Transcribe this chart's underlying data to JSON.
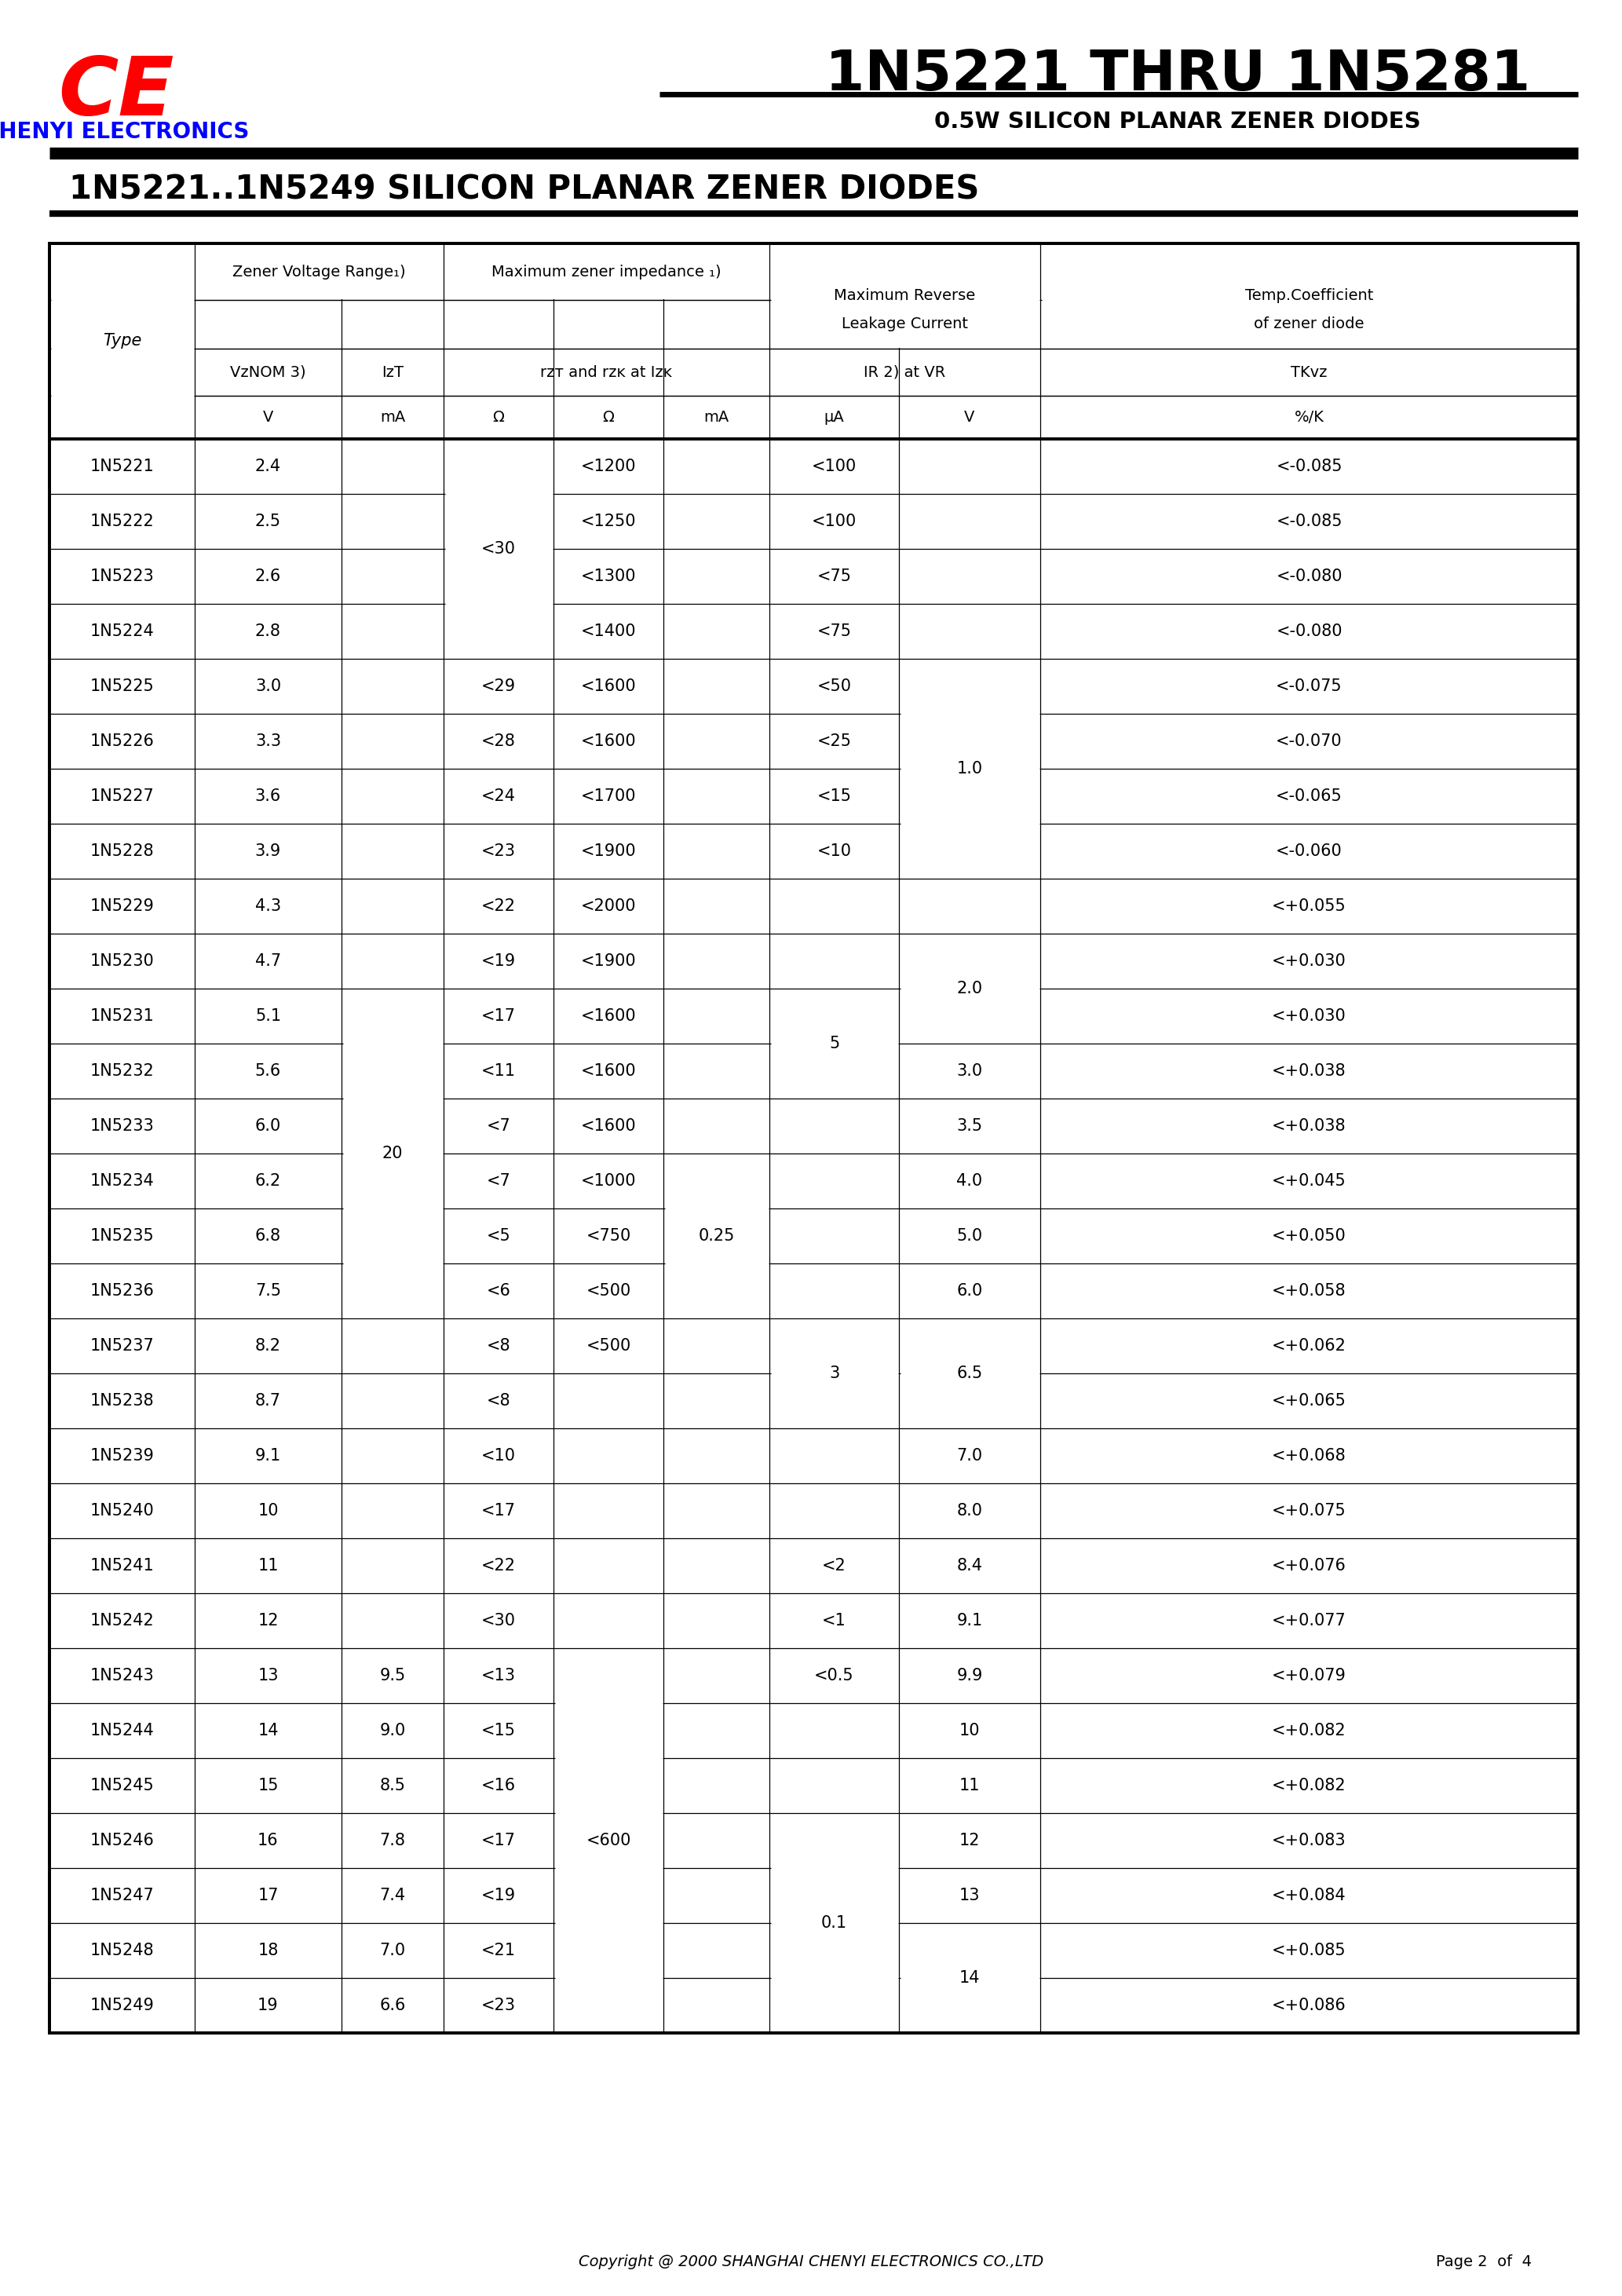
{
  "page_title": "1N5221 THRU 1N5281",
  "page_subtitle": "0.5W SILICON PLANAR ZENER DIODES",
  "section_title": "1N5221..1N5249 SILICON PLANAR ZENER DIODES",
  "logo_text": "CE",
  "company_name": "CHENYI ELECTRONICS",
  "copyright": "Copyright @ 2000 SHANGHAI CHENYI ELECTRONICS CO.,LTD",
  "page_num": "Page 2  of  4",
  "rows": [
    {
      "type": "1N5221",
      "vz": "2.4",
      "izt": "",
      "rzt": "",
      "rzk": "<1200",
      "izk": "",
      "ir": "<100",
      "vr": "",
      "tkvz": "<-0.085"
    },
    {
      "type": "1N5222",
      "vz": "2.5",
      "izt": "",
      "rzt": "",
      "rzk": "<1250",
      "izk": "",
      "ir": "<100",
      "vr": "",
      "tkvz": "<-0.085"
    },
    {
      "type": "1N5223",
      "vz": "2.6",
      "izt": "",
      "rzt": "<30",
      "rzk": "<1300",
      "izk": "",
      "ir": "<75",
      "vr": "",
      "tkvz": "<-0.080"
    },
    {
      "type": "1N5224",
      "vz": "2.8",
      "izt": "",
      "rzt": "",
      "rzk": "<1400",
      "izk": "",
      "ir": "<75",
      "vr": "",
      "tkvz": "<-0.080"
    },
    {
      "type": "1N5225",
      "vz": "3.0",
      "izt": "",
      "rzt": "<29",
      "rzk": "<1600",
      "izk": "",
      "ir": "<50",
      "vr": "1.0",
      "tkvz": "<-0.075"
    },
    {
      "type": "1N5226",
      "vz": "3.3",
      "izt": "",
      "rzt": "<28",
      "rzk": "<1600",
      "izk": "",
      "ir": "<25",
      "vr": "",
      "tkvz": "<-0.070"
    },
    {
      "type": "1N5227",
      "vz": "3.6",
      "izt": "",
      "rzt": "<24",
      "rzk": "<1700",
      "izk": "",
      "ir": "<15",
      "vr": "",
      "tkvz": "<-0.065"
    },
    {
      "type": "1N5228",
      "vz": "3.9",
      "izt": "",
      "rzt": "<23",
      "rzk": "<1900",
      "izk": "",
      "ir": "<10",
      "vr": "",
      "tkvz": "<-0.060"
    },
    {
      "type": "1N5229",
      "vz": "4.3",
      "izt": "",
      "rzt": "<22",
      "rzk": "<2000",
      "izk": "",
      "ir": "",
      "vr": "",
      "tkvz": "<+0.055"
    },
    {
      "type": "1N5230",
      "vz": "4.7",
      "izt": "",
      "rzt": "<19",
      "rzk": "<1900",
      "izk": "",
      "ir": "",
      "vr": "2.0",
      "tkvz": "<+0.030"
    },
    {
      "type": "1N5231",
      "vz": "5.1",
      "izt": "",
      "rzt": "<17",
      "rzk": "<1600",
      "izk": "",
      "ir": "",
      "vr": "2.0",
      "tkvz": "<+0.030"
    },
    {
      "type": "1N5232",
      "vz": "5.6",
      "izt": "",
      "rzt": "<11",
      "rzk": "<1600",
      "izk": "",
      "ir": "",
      "vr": "3.0",
      "tkvz": "<+0.038"
    },
    {
      "type": "1N5233",
      "vz": "6.0",
      "izt": "",
      "rzt": "<7",
      "rzk": "<1600",
      "izk": "",
      "ir": "",
      "vr": "3.5",
      "tkvz": "<+0.038"
    },
    {
      "type": "1N5234",
      "vz": "6.2",
      "izt": "",
      "rzt": "<7",
      "rzk": "<1000",
      "izk": "0.25",
      "ir": "",
      "vr": "4.0",
      "tkvz": "<+0.045"
    },
    {
      "type": "1N5235",
      "vz": "6.8",
      "izt": "",
      "rzt": "<5",
      "rzk": "<750",
      "izk": "",
      "ir": "",
      "vr": "5.0",
      "tkvz": "<+0.050"
    },
    {
      "type": "1N5236",
      "vz": "7.5",
      "izt": "",
      "rzt": "<6",
      "rzk": "<500",
      "izk": "",
      "ir": "",
      "vr": "6.0",
      "tkvz": "<+0.058"
    },
    {
      "type": "1N5237",
      "vz": "8.2",
      "izt": "",
      "rzt": "<8",
      "rzk": "<500",
      "izk": "",
      "ir": "3",
      "vr": "6.5",
      "tkvz": "<+0.062"
    },
    {
      "type": "1N5238",
      "vz": "8.7",
      "izt": "",
      "rzt": "<8",
      "rzk": "",
      "izk": "",
      "ir": "",
      "vr": "6.5",
      "tkvz": "<+0.065"
    },
    {
      "type": "1N5239",
      "vz": "9.1",
      "izt": "",
      "rzt": "<10",
      "rzk": "",
      "izk": "",
      "ir": "",
      "vr": "7.0",
      "tkvz": "<+0.068"
    },
    {
      "type": "1N5240",
      "vz": "10",
      "izt": "",
      "rzt": "<17",
      "rzk": "",
      "izk": "",
      "ir": "",
      "vr": "8.0",
      "tkvz": "<+0.075"
    },
    {
      "type": "1N5241",
      "vz": "11",
      "izt": "",
      "rzt": "<22",
      "rzk": "",
      "izk": "",
      "ir": "<2",
      "vr": "8.4",
      "tkvz": "<+0.076"
    },
    {
      "type": "1N5242",
      "vz": "12",
      "izt": "",
      "rzt": "<30",
      "rzk": "",
      "izk": "",
      "ir": "<1",
      "vr": "9.1",
      "tkvz": "<+0.077"
    },
    {
      "type": "1N5243",
      "vz": "13",
      "izt": "9.5",
      "rzt": "<13",
      "rzk": "<600",
      "izk": "",
      "ir": "<0.5",
      "vr": "9.9",
      "tkvz": "<+0.079"
    },
    {
      "type": "1N5244",
      "vz": "14",
      "izt": "9.0",
      "rzt": "<15",
      "rzk": "",
      "izk": "",
      "ir": "",
      "vr": "10",
      "tkvz": "<+0.082"
    },
    {
      "type": "1N5245",
      "vz": "15",
      "izt": "8.5",
      "rzt": "<16",
      "rzk": "",
      "izk": "",
      "ir": "",
      "vr": "11",
      "tkvz": "<+0.082"
    },
    {
      "type": "1N5246",
      "vz": "16",
      "izt": "7.8",
      "rzt": "<17",
      "rzk": "",
      "izk": "",
      "ir": "0.1",
      "vr": "12",
      "tkvz": "<+0.083"
    },
    {
      "type": "1N5247",
      "vz": "17",
      "izt": "7.4",
      "rzt": "<19",
      "rzk": "",
      "izk": "",
      "ir": "",
      "vr": "13",
      "tkvz": "<+0.084"
    },
    {
      "type": "1N5248",
      "vz": "18",
      "izt": "7.0",
      "rzt": "<21",
      "rzk": "",
      "izk": "",
      "ir": "",
      "vr": "14",
      "tkvz": "<+0.085"
    },
    {
      "type": "1N5249",
      "vz": "19",
      "izt": "6.6",
      "rzt": "<23",
      "rzk": "",
      "izk": "",
      "ir": "",
      "vr": "14",
      "tkvz": "<+0.086"
    }
  ]
}
